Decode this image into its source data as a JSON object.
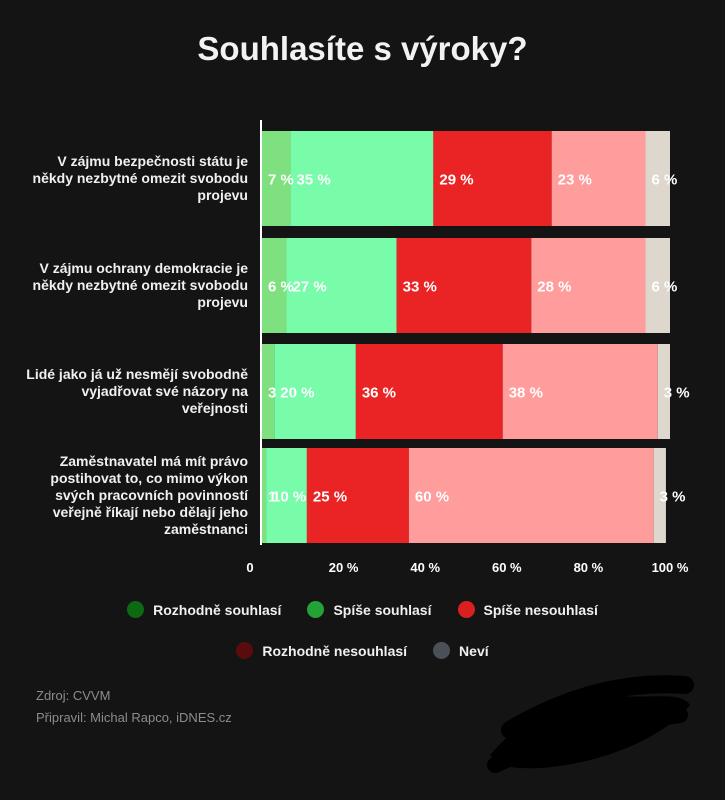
{
  "title": "Souhlasíte s výroky?",
  "chart_data": {
    "type": "bar",
    "orientation": "horizontal",
    "stacked": true,
    "categories": [
      "V zájmu bezpečnosti státu je někdy nezbytné omezit svobodu projevu",
      "V zájmu ochrany demokracie je někdy nezbytné omezit svobodu projevu",
      "Lidé jako já už nesmějí svobodně vyjadřovat své názory na veřejnosti",
      "Zaměstnavatel má mít právo postihovat to, co mimo výkon svých pracovních povinností veřejně říkají nebo dělají jeho zaměstnanci"
    ],
    "category_lines": [
      [
        "V zájmu bezpečnosti státu je",
        "někdy nezbytné omezit",
        "svobodu projevu"
      ],
      [
        "V zájmu ochrany demokracie je",
        "někdy nezbytné omezit",
        "svobodu projevu"
      ],
      [
        "Lidé jako já už nesmějí",
        "svobodně vyjadřovat své",
        "názory na veřejnosti"
      ],
      [
        "Zaměstnavatel má mít právo",
        "postihovat to, co mimo výkon",
        "svých pracovních povinností",
        "veřejně říkají nebo dělají jeho",
        "zaměstnanci"
      ]
    ],
    "series": [
      {
        "name": "Rozhodně souhlasí",
        "color": "#7ee07e",
        "values": [
          7,
          6,
          3,
          1
        ],
        "labels": [
          "7 %",
          "6 %",
          "3",
          "1"
        ]
      },
      {
        "name": "Spíše souhlasí",
        "color": "#79fcaa",
        "values": [
          35,
          27,
          20,
          10
        ],
        "labels": [
          "35 %",
          "27 %",
          "20 %",
          "10 %"
        ]
      },
      {
        "name": "Spíše nesouhlasí",
        "color": "#ea2424",
        "values": [
          29,
          33,
          36,
          25
        ],
        "labels": [
          "29 %",
          "33 %",
          "36 %",
          "25 %"
        ]
      },
      {
        "name": "Rozhodně nesouhlasí",
        "color": "#ff9c9c",
        "values": [
          23,
          28,
          38,
          60
        ],
        "labels": [
          "23 %",
          "28 %",
          "38 %",
          "60 %"
        ]
      },
      {
        "name": "Neví",
        "color": "#ddd7cd",
        "values": [
          6,
          6,
          3,
          3
        ],
        "labels": [
          "6 %",
          "6 %",
          "3 %",
          "3 %"
        ]
      }
    ],
    "xlim": [
      0,
      100
    ],
    "xticks": [
      {
        "value": 0,
        "label": "0"
      },
      {
        "value": 20,
        "label": "20 %"
      },
      {
        "value": 40,
        "label": "40 %"
      },
      {
        "value": 60,
        "label": "60 %"
      },
      {
        "value": 80,
        "label": "80 %"
      },
      {
        "value": 100,
        "label": "100 %"
      }
    ],
    "legend": {
      "placement": "bottom",
      "rows": [
        [
          {
            "label": "Rozhodně souhlasí",
            "color": "#0e6a12"
          },
          {
            "label": "Spíše souhlasí",
            "color": "#23a336"
          },
          {
            "label": "Spíše nesouhlasí",
            "color": "#d82020"
          }
        ],
        [
          {
            "label": "Rozhodně nesouhlasí",
            "color": "#5a0c0c"
          },
          {
            "label": "Neví",
            "color": "#4a5056"
          }
        ]
      ]
    }
  },
  "footer": {
    "source": "Zdroj: CVVM",
    "prepared": "Připravil: Michal Rapco, iDNES.cz"
  }
}
